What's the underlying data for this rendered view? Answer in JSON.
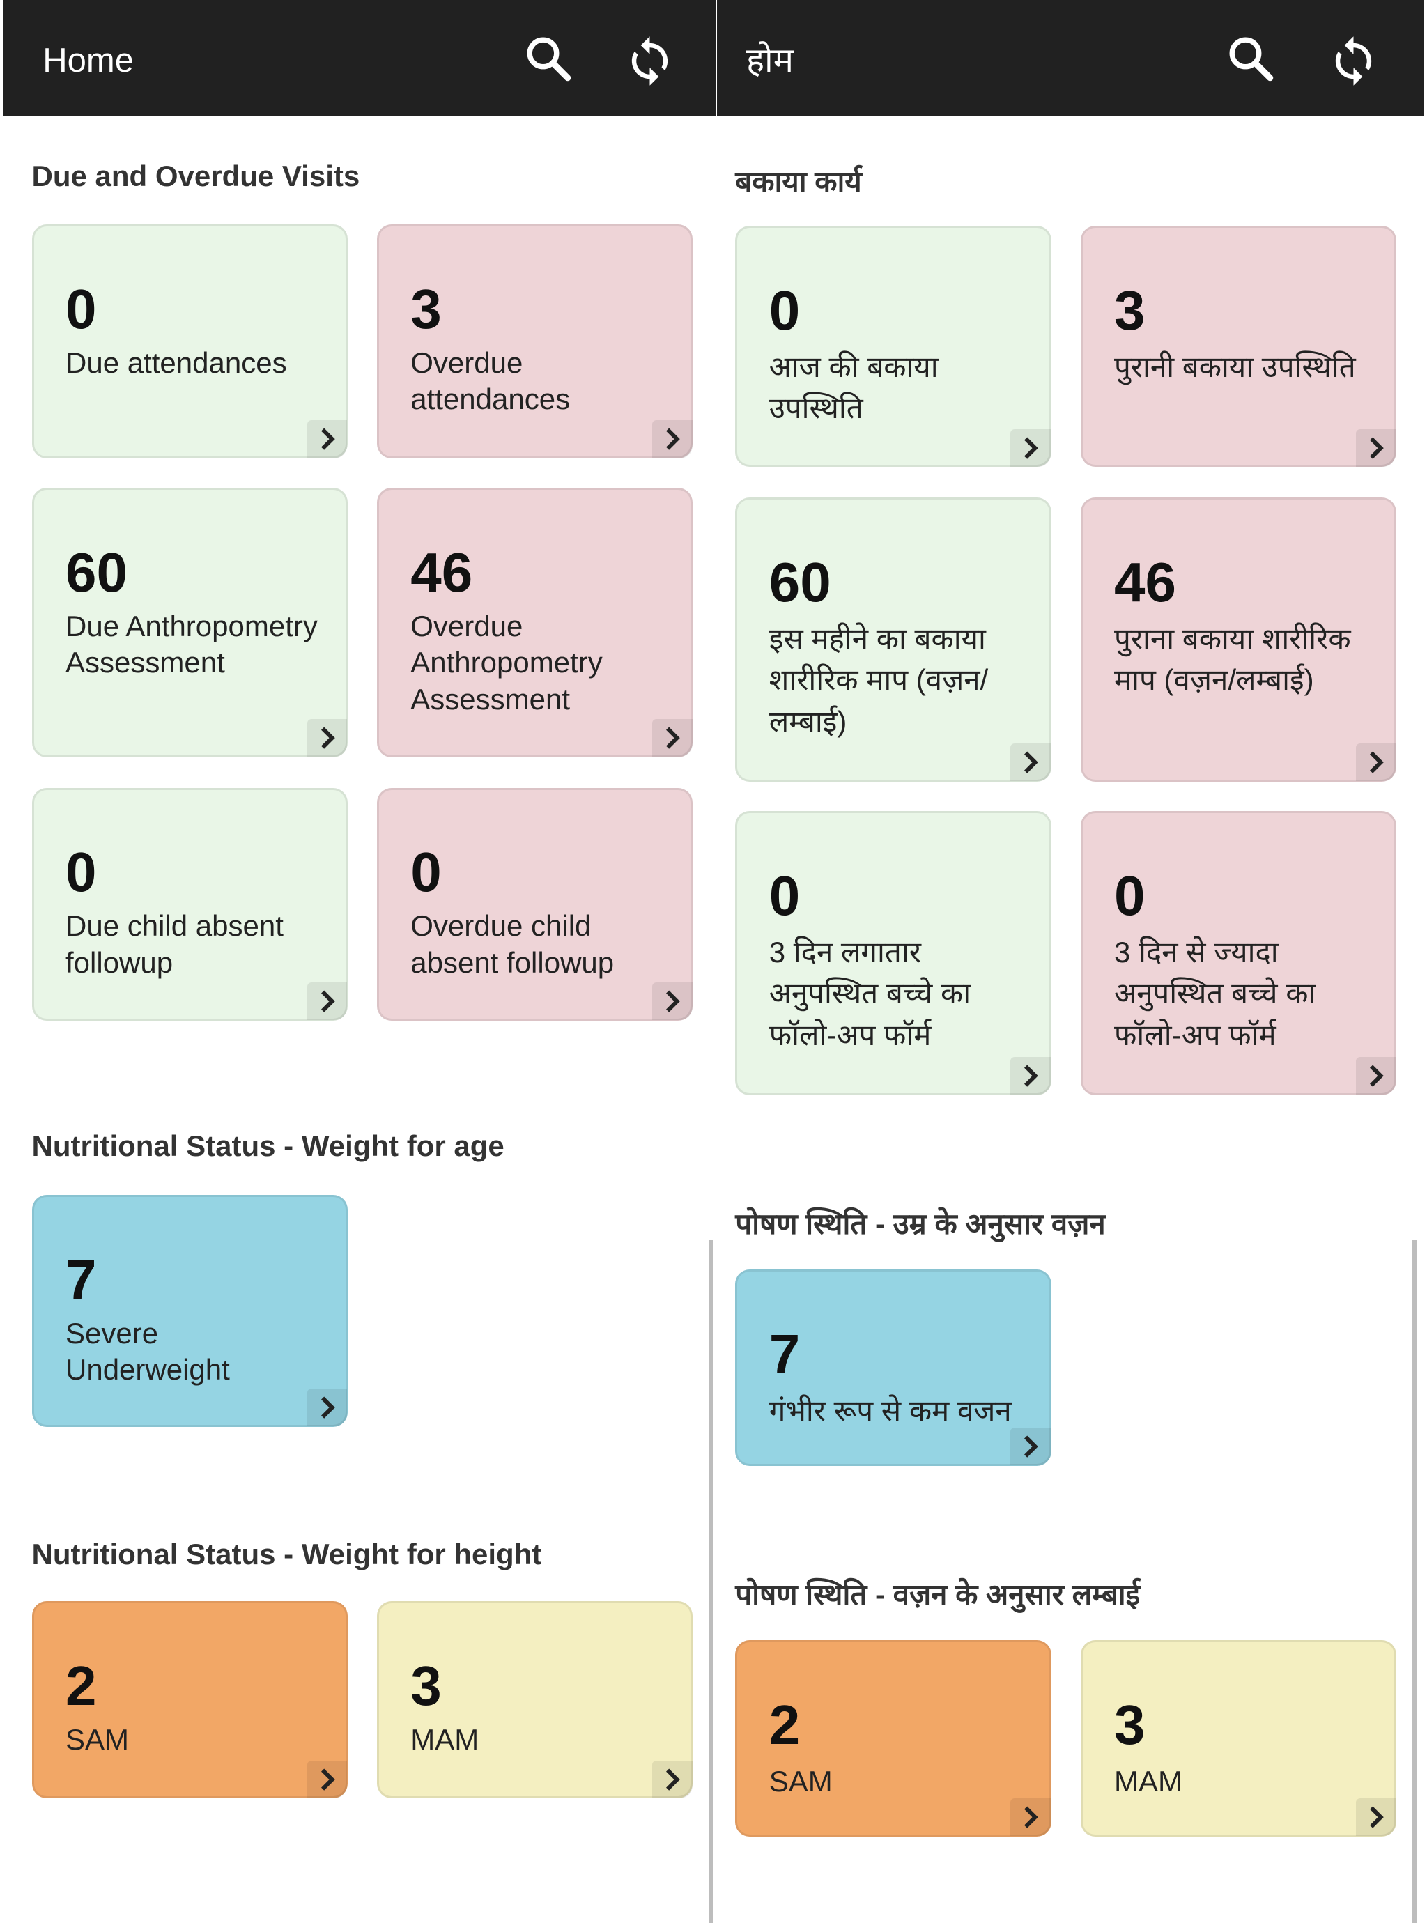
{
  "panels": [
    {
      "header": {
        "title": "Home"
      },
      "sections": [
        {
          "title": "Due and Overdue Visits",
          "cards": [
            {
              "count": "0",
              "label": "Due attendances",
              "color": "#e9f6e7"
            },
            {
              "count": "3",
              "label": "Overdue attendances",
              "color": "#eed4d7"
            },
            {
              "count": "60",
              "label": "Due Anthropometry Assessment",
              "color": "#e9f6e7"
            },
            {
              "count": "46",
              "label": "Overdue Anthropometry Assessment",
              "color": "#eed4d7"
            },
            {
              "count": "0",
              "label": "Due child absent followup",
              "color": "#e9f6e7"
            },
            {
              "count": "0",
              "label": "Overdue child absent followup",
              "color": "#eed4d7"
            }
          ]
        },
        {
          "title": "Nutritional Status - Weight for age",
          "cards": [
            {
              "count": "7",
              "label": "Severe Underweight",
              "color": "#95d4e3"
            }
          ]
        },
        {
          "title": "Nutritional Status - Weight for height",
          "cards": [
            {
              "count": "2",
              "label": "SAM",
              "color": "#f2a766"
            },
            {
              "count": "3",
              "label": "MAM",
              "color": "#f4efc1"
            }
          ]
        }
      ]
    },
    {
      "header": {
        "title": "होम"
      },
      "sections": [
        {
          "title": "बकाया कार्य",
          "cards": [
            {
              "count": "0",
              "label": "आज की बकाया उपस्थिति",
              "color": "#e9f6e7"
            },
            {
              "count": "3",
              "label": "पुरानी बकाया उपस्थिति",
              "color": "#eed4d7"
            },
            {
              "count": "60",
              "label": "इस महीने का बकाया शारीरिक माप (वज़न/लम्बाई)",
              "color": "#e9f6e7"
            },
            {
              "count": "46",
              "label": "पुराना बकाया शारीरिक माप (वज़न/लम्बाई)",
              "color": "#eed4d7"
            },
            {
              "count": "0",
              "label": "3 दिन लगातार अनुपस्थित बच्चे का फॉलो-अप फॉर्म",
              "color": "#e9f6e7"
            },
            {
              "count": "0",
              "label": "3 दिन से ज्यादा अनुपस्थित बच्चे का फॉलो-अप फॉर्म",
              "color": "#eed4d7"
            }
          ]
        },
        {
          "title": "पोषण स्थिति - उम्र के अनुसार वज़न",
          "cards": [
            {
              "count": "7",
              "label": "गंभीर रूप से कम वजन",
              "color": "#95d4e3"
            }
          ]
        },
        {
          "title": "पोषण स्थिति - वज़न के अनुसार लम्बाई",
          "cards": [
            {
              "count": "2",
              "label": "SAM",
              "color": "#f2a766"
            },
            {
              "count": "3",
              "label": "MAM",
              "color": "#f4efc1"
            }
          ]
        }
      ]
    }
  ]
}
